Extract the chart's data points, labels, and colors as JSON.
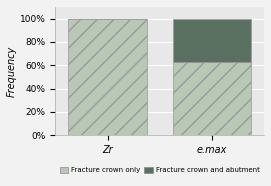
{
  "categories": [
    "Zr",
    "e.max"
  ],
  "crown_only": [
    1.0,
    0.625
  ],
  "crown_and_abutment": [
    0.0,
    0.375
  ],
  "color_crown_only": "#b8c8b5",
  "color_crown_abutment": "#5a7060",
  "color_side_panel": "#c8d8c5",
  "color_top_panel": "#d0dfd0",
  "ylabel": "Frequency",
  "yticks": [
    0.0,
    0.2,
    0.4,
    0.6,
    0.8,
    1.0
  ],
  "ytick_labels": [
    "0%",
    "20%",
    "40%",
    "60%",
    "80%",
    "100%"
  ],
  "legend_crown_only": "Fracture crown only",
  "legend_crown_abutment": "Fracture crown and abutment",
  "bar_width": 0.6,
  "x_positions": [
    0.3,
    1.1
  ],
  "background_color": "#f2f2f2",
  "plot_bg_color": "#e8e8e8",
  "grid_color": "#ffffff"
}
